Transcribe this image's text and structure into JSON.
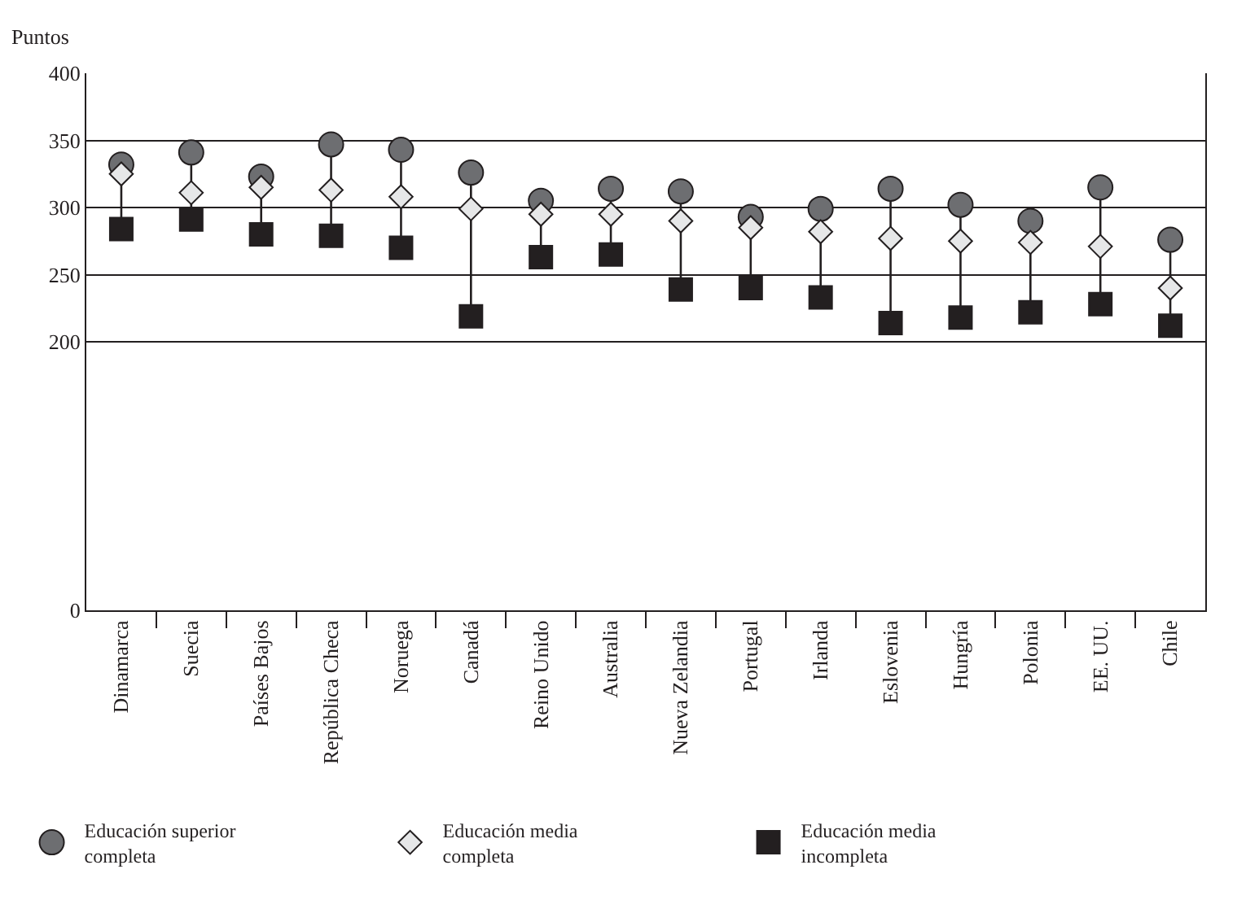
{
  "chart_data": {
    "type": "scatter",
    "ylabel": "Puntos",
    "categories": [
      "Dinamarca",
      "Suecia",
      "Países Bajos",
      "República Checa",
      "Noruega",
      "Canadá",
      "Reino Unido",
      "Australia",
      "Nueva Zelandia",
      "Portugal",
      "Irlanda",
      "Eslovenia",
      "Hungría",
      "Polonia",
      "EE. UU.",
      "Chile"
    ],
    "series": [
      {
        "name": "Educación superior completa",
        "color": "#6d6e71",
        "marker": "circle",
        "values": [
          332,
          341,
          323,
          347,
          343,
          326,
          305,
          314,
          312,
          293,
          299,
          314,
          302,
          290,
          315,
          276
        ]
      },
      {
        "name": "Educación media completa",
        "color": "#e6e7e8",
        "marker": "diamond",
        "values": [
          325,
          311,
          315,
          313,
          308,
          299,
          295,
          295,
          290,
          285,
          282,
          277,
          275,
          274,
          271,
          240
        ]
      },
      {
        "name": "Educación media incompleta",
        "color": "#231f20",
        "marker": "square",
        "values": [
          284,
          291,
          280,
          279,
          270,
          219,
          263,
          265,
          239,
          240,
          233,
          214,
          218,
          222,
          228,
          212
        ]
      }
    ],
    "ylim": [
      0,
      400
    ],
    "yticks": [
      0,
      200,
      250,
      300,
      350,
      400
    ],
    "grid": "y",
    "legend": "bottom"
  }
}
